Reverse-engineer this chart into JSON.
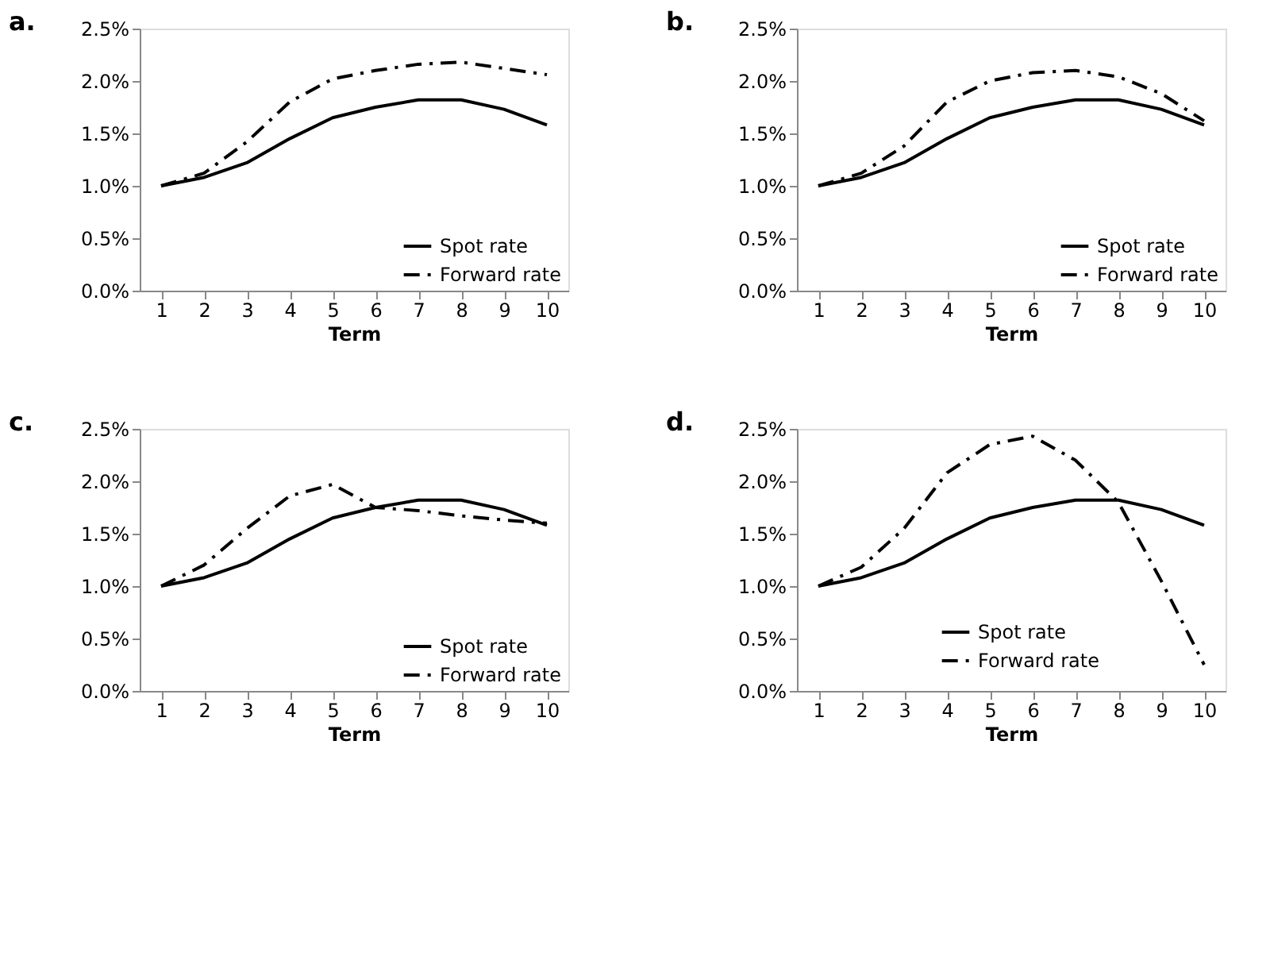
{
  "chart_data": [
    {
      "type": "line",
      "title": "a.",
      "xlabel": "Term",
      "categories": [
        "1",
        "2",
        "3",
        "4",
        "5",
        "6",
        "7",
        "8",
        "9",
        "10"
      ],
      "ylim": [
        0,
        2.5
      ],
      "yticks": [
        {
          "value": 0,
          "label": "0.0%"
        },
        {
          "value": 0.5,
          "label": "0.5%"
        },
        {
          "value": 1,
          "label": "1.0%"
        },
        {
          "value": 1.5,
          "label": "1.5%"
        },
        {
          "value": 2,
          "label": "2.0%"
        },
        {
          "value": 2.5,
          "label": "2.5%"
        }
      ],
      "grid": false,
      "legend": "bottom right",
      "series": [
        {
          "name": "Spot rate",
          "color": "#000000",
          "line_style": "solid",
          "values": [
            1.0,
            1.08,
            1.22,
            1.45,
            1.65,
            1.75,
            1.82,
            1.82,
            1.73,
            1.58
          ]
        },
        {
          "name": "Forward rate",
          "color": "#000000",
          "line_style": "dashed",
          "values": [
            1.0,
            1.12,
            1.42,
            1.8,
            2.02,
            2.1,
            2.16,
            2.18,
            2.12,
            2.06
          ]
        }
      ]
    },
    {
      "type": "line",
      "title": "b.",
      "xlabel": "Term",
      "categories": [
        "1",
        "2",
        "3",
        "4",
        "5",
        "6",
        "7",
        "8",
        "9",
        "10"
      ],
      "ylim": [
        0,
        2.5
      ],
      "yticks": [
        {
          "value": 0,
          "label": "0.0%"
        },
        {
          "value": 0.5,
          "label": "0.5%"
        },
        {
          "value": 1,
          "label": "1.0%"
        },
        {
          "value": 1.5,
          "label": "1.5%"
        },
        {
          "value": 2,
          "label": "2.0%"
        },
        {
          "value": 2.5,
          "label": "2.5%"
        }
      ],
      "grid": false,
      "legend": "bottom right",
      "series": [
        {
          "name": "Spot rate",
          "color": "#000000",
          "line_style": "solid",
          "values": [
            1.0,
            1.08,
            1.22,
            1.45,
            1.65,
            1.75,
            1.82,
            1.82,
            1.73,
            1.58
          ]
        },
        {
          "name": "Forward rate",
          "color": "#000000",
          "line_style": "dashed",
          "values": [
            1.0,
            1.12,
            1.38,
            1.8,
            2.0,
            2.08,
            2.1,
            2.04,
            1.88,
            1.62
          ]
        }
      ]
    },
    {
      "type": "line",
      "title": "c.",
      "xlabel": "Term",
      "categories": [
        "1",
        "2",
        "3",
        "4",
        "5",
        "6",
        "7",
        "8",
        "9",
        "10"
      ],
      "ylim": [
        0,
        2.5
      ],
      "yticks": [
        {
          "value": 0,
          "label": "0.0%"
        },
        {
          "value": 0.5,
          "label": "0.5%"
        },
        {
          "value": 1,
          "label": "1.0%"
        },
        {
          "value": 1.5,
          "label": "1.5%"
        },
        {
          "value": 2,
          "label": "2.0%"
        },
        {
          "value": 2.5,
          "label": "2.5%"
        }
      ],
      "grid": false,
      "legend": "bottom right",
      "series": [
        {
          "name": "Spot rate",
          "color": "#000000",
          "line_style": "solid",
          "values": [
            1.0,
            1.08,
            1.22,
            1.45,
            1.65,
            1.75,
            1.82,
            1.82,
            1.73,
            1.58
          ]
        },
        {
          "name": "Forward rate",
          "color": "#000000",
          "line_style": "dashed",
          "values": [
            1.0,
            1.2,
            1.55,
            1.86,
            1.97,
            1.75,
            1.72,
            1.67,
            1.63,
            1.6
          ]
        }
      ]
    },
    {
      "type": "line",
      "title": "d.",
      "xlabel": "Term",
      "categories": [
        "1",
        "2",
        "3",
        "4",
        "5",
        "6",
        "7",
        "8",
        "9",
        "10"
      ],
      "ylim": [
        0,
        2.5
      ],
      "yticks": [
        {
          "value": 0,
          "label": "0.0%"
        },
        {
          "value": 0.5,
          "label": "0.5%"
        },
        {
          "value": 1,
          "label": "1.0%"
        },
        {
          "value": 1.5,
          "label": "1.5%"
        },
        {
          "value": 2,
          "label": "2.0%"
        },
        {
          "value": 2.5,
          "label": "2.5%"
        }
      ],
      "grid": false,
      "legend": "bottom",
      "series": [
        {
          "name": "Spot rate",
          "color": "#000000",
          "line_style": "solid",
          "values": [
            1.0,
            1.08,
            1.22,
            1.45,
            1.65,
            1.75,
            1.82,
            1.82,
            1.73,
            1.58
          ]
        },
        {
          "name": "Forward rate",
          "color": "#000000",
          "line_style": "dashed",
          "values": [
            1.0,
            1.18,
            1.55,
            2.08,
            2.35,
            2.43,
            2.2,
            1.8,
            1.05,
            0.25
          ]
        }
      ]
    }
  ]
}
